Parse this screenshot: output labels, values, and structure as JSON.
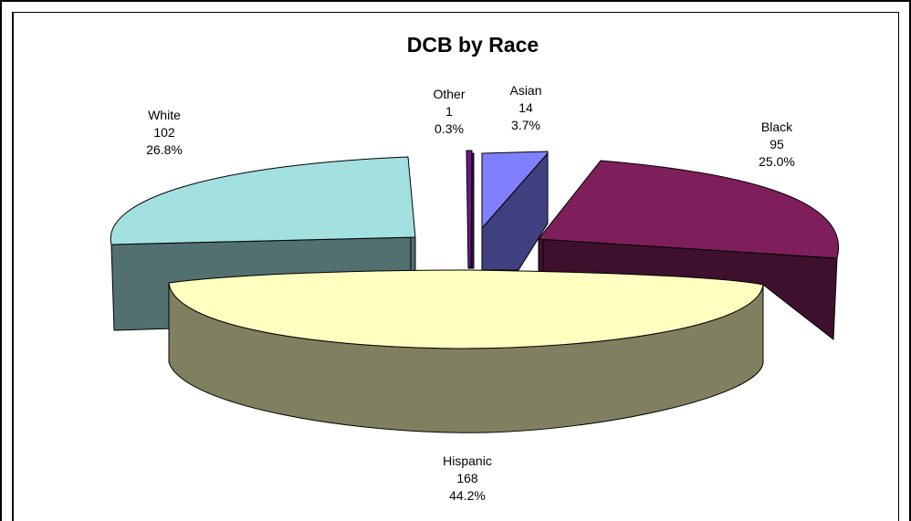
{
  "chart_data": {
    "type": "pie",
    "title": "DCB by Race",
    "slices": [
      {
        "name": "Asian",
        "value": 14,
        "percent": "3.7%",
        "top_color": "#8080ff",
        "side_color": "#404080"
      },
      {
        "name": "Black",
        "value": 95,
        "percent": "25.0%",
        "top_color": "#7e1f5b",
        "side_color": "#3f102e"
      },
      {
        "name": "Hispanic",
        "value": 168,
        "percent": "44.2%",
        "top_color": "#ffffc0",
        "side_color": "#808060"
      },
      {
        "name": "White",
        "value": 102,
        "percent": "26.8%",
        "top_color": "#a3e0e0",
        "side_color": "#527070"
      },
      {
        "name": "Other",
        "value": 1,
        "percent": "0.3%",
        "top_color": "#6a1a8a",
        "side_color": "#350d45"
      }
    ]
  }
}
